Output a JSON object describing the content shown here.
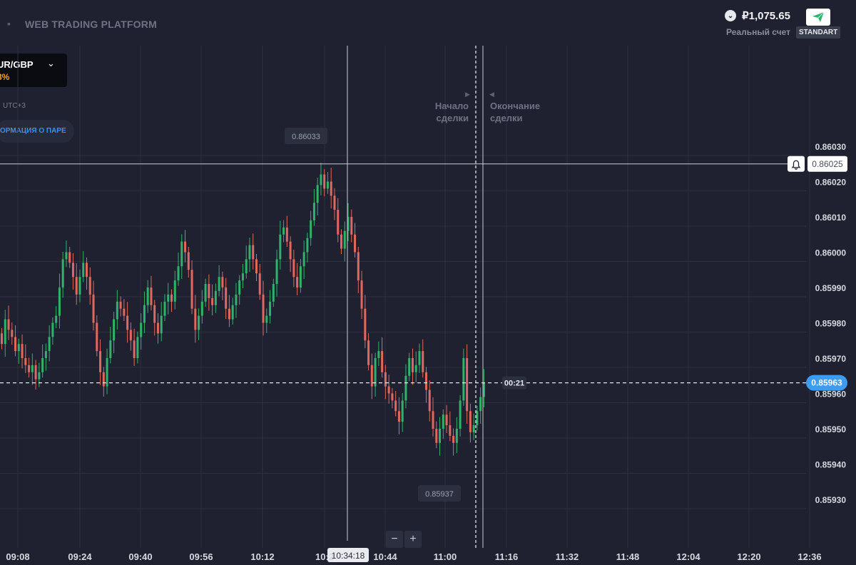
{
  "header": {
    "brand": "WEB TRADING PLATFORM",
    "balance": "₽1,075.65",
    "account_type": "Реальный счет",
    "account_badge": "STANDART"
  },
  "pair": {
    "name": "UR/GBP",
    "payout": "8%",
    "timezone": "UTC+3",
    "info_button": "ОРМАЦИЯ О ПАРЕ"
  },
  "markers": {
    "trade_start": "Начало сделки",
    "trade_end": "Окончание сделки",
    "high_label": "0.86033",
    "low_label": "0.85937",
    "cursor_price": "0.86025",
    "current_price": "0.85963",
    "countdown": "00:21",
    "cursor_time": "10:34:18"
  },
  "zoom": {
    "minus": "−",
    "plus": "+"
  },
  "colors": {
    "up": "#2fb36a",
    "down": "#e0685e",
    "price_tag": "#3d9bf0",
    "background": "#1f2130"
  },
  "chart_data": {
    "type": "candlestick",
    "y_ticks": [
      "0.86030",
      "0.86020",
      "0.86010",
      "0.86000",
      "0.85990",
      "0.85980",
      "0.85970",
      "0.85960",
      "0.85950",
      "0.85940",
      "0.85930"
    ],
    "x_ticks": [
      "09:08",
      "09:24",
      "09:40",
      "09:56",
      "10:12",
      "10:2",
      "10:44",
      "11:00",
      "11:16",
      "11:32",
      "11:48",
      "12:04",
      "12:20",
      "12:36"
    ],
    "ylim": [
      0.85923,
      0.86075
    ],
    "cursor_price": 0.86025,
    "current_price": 0.85963,
    "closes": [
      0.85974,
      0.85981,
      0.85978,
      0.85976,
      0.85972,
      0.85974,
      0.8597,
      0.85968,
      0.85966,
      0.85968,
      0.85964,
      0.85966,
      0.8597,
      0.85972,
      0.85976,
      0.8598,
      0.85982,
      0.8599,
      0.85998,
      0.86,
      0.85997,
      0.85993,
      0.85988,
      0.85993,
      0.85997,
      0.85993,
      0.85988,
      0.8598,
      0.85972,
      0.85966,
      0.85962,
      0.8597,
      0.85975,
      0.85981,
      0.85986,
      0.85984,
      0.85982,
      0.85978,
      0.85975,
      0.8597,
      0.85976,
      0.8598,
      0.85985,
      0.8599,
      0.85985,
      0.8598,
      0.85977,
      0.85982,
      0.85986,
      0.85988,
      0.85986,
      0.85992,
      0.85996,
      0.86003,
      0.86,
      0.85995,
      0.85984,
      0.85978,
      0.85982,
      0.85986,
      0.85991,
      0.85987,
      0.85985,
      0.85989,
      0.85993,
      0.8599,
      0.85984,
      0.85981,
      0.85985,
      0.85988,
      0.85992,
      0.85994,
      0.85998,
      0.86002,
      0.85998,
      0.85994,
      0.85988,
      0.8598,
      0.85982,
      0.85986,
      0.85991,
      0.85998,
      0.86005,
      0.86007,
      0.86003,
      0.85998,
      0.85993,
      0.8599,
      0.85996,
      0.86,
      0.86004,
      0.86009,
      0.86014,
      0.86019,
      0.86022,
      0.86018,
      0.8602,
      0.86016,
      0.86012,
      0.86005,
      0.86001,
      0.86006,
      0.8601,
      0.86005,
      0.86,
      0.85992,
      0.85984,
      0.85975,
      0.85968,
      0.85962,
      0.8597,
      0.85972,
      0.85966,
      0.85962,
      0.8596,
      0.85958,
      0.85955,
      0.85952,
      0.85958,
      0.85965,
      0.8597,
      0.85966,
      0.85968,
      0.85972,
      0.85966,
      0.85961,
      0.85955,
      0.8595,
      0.85946,
      0.8595,
      0.85954,
      0.85951,
      0.85948,
      0.85946,
      0.8595,
      0.85958,
      0.8597,
      0.85955,
      0.85949,
      0.85951,
      0.85955,
      0.85959,
      0.85963
    ]
  }
}
